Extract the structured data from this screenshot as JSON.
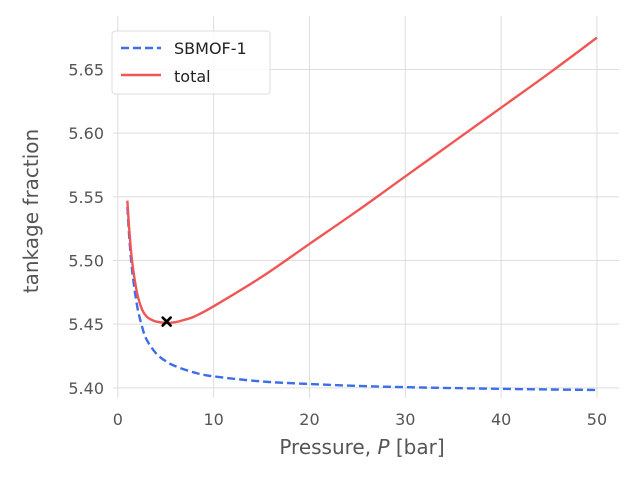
{
  "chart_data": {
    "type": "line",
    "xlabel": "Pressure, $P$ [bar]",
    "xlabel_parts": {
      "prefix": "Pressure, ",
      "var": "P",
      "suffix": " [bar]"
    },
    "ylabel": "tankage fraction",
    "xlim": [
      -0.5,
      52.3
    ],
    "ylim": [
      5.392,
      5.692
    ],
    "xticks": [
      0,
      10,
      20,
      30,
      40,
      50
    ],
    "xtick_labels": [
      "0",
      "10",
      "20",
      "30",
      "40",
      "50"
    ],
    "yticks": [
      5.4,
      5.45,
      5.5,
      5.55,
      5.6,
      5.65
    ],
    "ytick_labels": [
      "5.40",
      "5.45",
      "5.50",
      "5.55",
      "5.60",
      "5.65"
    ],
    "grid": true,
    "legend_position": "top-left",
    "series": [
      {
        "name": "SBMOF-1",
        "color": "#3b6ee8",
        "dash": "dashed",
        "x": [
          1,
          1.2,
          1.5,
          2,
          2.5,
          3,
          4,
          5,
          6,
          8,
          10,
          15,
          20,
          25,
          30,
          35,
          40,
          45,
          50
        ],
        "y": [
          5.542,
          5.518,
          5.492,
          5.465,
          5.449,
          5.438,
          5.427,
          5.421,
          5.417,
          5.412,
          5.409,
          5.405,
          5.403,
          5.4015,
          5.4005,
          5.3998,
          5.3992,
          5.3987,
          5.3983
        ]
      },
      {
        "name": "total",
        "color": "#f05656",
        "dash": "solid",
        "x": [
          1,
          1.2,
          1.5,
          2,
          2.5,
          3,
          3.5,
          4,
          5,
          6,
          7,
          8,
          10,
          15,
          20,
          25,
          30,
          35,
          40,
          45,
          50
        ],
        "y": [
          5.547,
          5.524,
          5.499,
          5.475,
          5.462,
          5.456,
          5.4535,
          5.452,
          5.451,
          5.4515,
          5.4535,
          5.456,
          5.464,
          5.487,
          5.513,
          5.539,
          5.566,
          5.593,
          5.62,
          5.647,
          5.675
        ]
      }
    ],
    "marker": {
      "x": 5.1,
      "y": 5.452,
      "symbol": "x",
      "color": "#000000"
    }
  }
}
